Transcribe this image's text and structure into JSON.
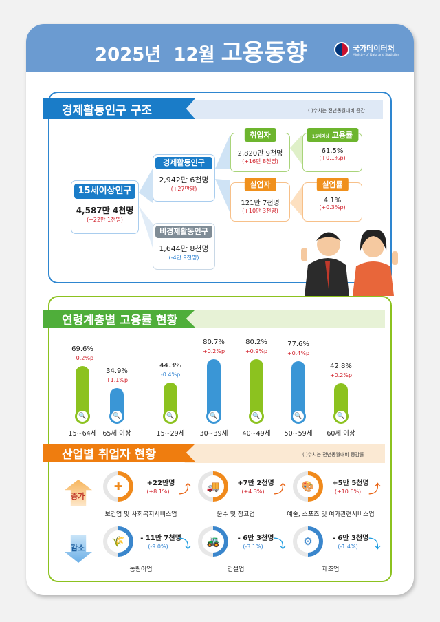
{
  "header": {
    "year": "2025년",
    "month": "12월",
    "title": "고용동향",
    "org_ko": "국가데이터처",
    "org_en": "Ministry of Data and Statistics"
  },
  "colors": {
    "blue": "#1a7cc8",
    "green": "#8cc21f",
    "orange": "#f08a1c",
    "red": "#d0202a",
    "decrease_blue": "#2a7fd0"
  },
  "structure": {
    "title": "경제활동인구 구조",
    "note": "(  )수치는 전년동월대비 증감",
    "pop15": {
      "label": "15세이상인구",
      "value": "4,587만 4천명",
      "change": "(+22만 1천명)"
    },
    "active": {
      "label": "경제활동인구",
      "value": "2,942만 6천명",
      "change": "(+27만명)"
    },
    "inactive": {
      "label": "비경제활동인구",
      "value": "1,644만 8천명",
      "change": "(-4만 9천명)"
    },
    "employed": {
      "label": "취업자",
      "value": "2,820만 9천명",
      "change": "(+16만 8천명)"
    },
    "emp_rate": {
      "label_small": "15세이상",
      "label": "고용률",
      "value": "61.5%",
      "change": "(+0.1%p)"
    },
    "unemployed": {
      "label": "실업자",
      "value": "121만 7천명",
      "change": "(+10만 3천명)"
    },
    "unemp_rate": {
      "label": "실업률",
      "value": "4.1%",
      "change": "(+0.3%p)"
    }
  },
  "age": {
    "title": "연령계층별 고용률 현황",
    "groups": [
      {
        "label": "15~64세",
        "value": "69.6%",
        "change": "+0.2%p",
        "rate": 69.6,
        "color": "green",
        "up": true
      },
      {
        "label": "65세 이상",
        "value": "34.9%",
        "change": "+1.1%p",
        "rate": 34.9,
        "color": "blue",
        "up": true
      },
      {
        "label": "15~29세",
        "value": "44.3%",
        "change": "-0.4%p",
        "rate": 44.3,
        "color": "green",
        "up": false
      },
      {
        "label": "30~39세",
        "value": "80.7%",
        "change": "+0.2%p",
        "rate": 80.7,
        "color": "blue",
        "up": true
      },
      {
        "label": "40~49세",
        "value": "80.2%",
        "change": "+0.9%p",
        "rate": 80.2,
        "color": "green",
        "up": true
      },
      {
        "label": "50~59세",
        "value": "77.6%",
        "change": "+0.4%p",
        "rate": 77.6,
        "color": "blue",
        "up": true
      },
      {
        "label": "60세 이상",
        "value": "42.8%",
        "change": "+0.2%p",
        "rate": 42.8,
        "color": "green",
        "up": true
      }
    ]
  },
  "industry": {
    "title": "산업별 취업자 현황",
    "note": "(  )수치는 전년동월대비 증감률",
    "increase_label": "증가",
    "decrease_label": "감소",
    "increase": [
      {
        "name": "보건업 및 사회복지서비스업",
        "value": "+22만명",
        "pct": "(+8.1%)",
        "icon": "medical-kit-icon"
      },
      {
        "name": "운수 및 창고업",
        "value": "+7만 2천명",
        "pct": "(+4.3%)",
        "icon": "truck-icon"
      },
      {
        "name": "예술, 스포츠 및 여가관련서비스업",
        "value": "+5만 5천명",
        "pct": "(+10.6%)",
        "icon": "palette-icon"
      }
    ],
    "decrease": [
      {
        "name": "농림어업",
        "value": "- 11만 7천명",
        "pct": "(-9.0%)",
        "icon": "wheat-icon"
      },
      {
        "name": "건설업",
        "value": "- 6만 3천명",
        "pct": "(-3.1%)",
        "icon": "excavator-icon"
      },
      {
        "name": "제조업",
        "value": "- 6만 3천명",
        "pct": "(-1.4%)",
        "icon": "gears-icon"
      }
    ]
  }
}
